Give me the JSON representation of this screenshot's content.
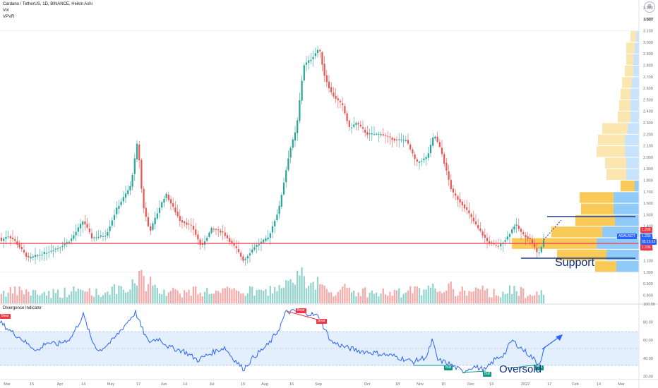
{
  "header": {
    "title": "Cardano / TetherUS, 1D, BINANCE, Heikin Ashi",
    "vol_label": "Vol",
    "vpvr_label": "VPVR",
    "currency": "USDT"
  },
  "price_axis": {
    "ticks": [
      "3.300",
      "3.200",
      "3.100",
      "3.000",
      "2.900",
      "2.800",
      "2.700",
      "2.600",
      "2.500",
      "2.400",
      "2.300",
      "2.200",
      "2.100",
      "2.000",
      "1.900",
      "1.800",
      "1.700",
      "1.600",
      "1.500",
      "1.400",
      "1.300",
      "1.200",
      "1.100",
      "1.000",
      "0.900",
      "0.800"
    ],
    "badges": [
      {
        "text": "1.298",
        "color": "#f23645"
      },
      {
        "text": "ADAUSDT",
        "color": "#2962ff"
      },
      {
        "text": "1.293",
        "color": "#2962ff"
      },
      {
        "text": "05:15:12",
        "color": "#2962ff"
      },
      {
        "text": "1.236",
        "color": "#f23645"
      }
    ]
  },
  "oscillator": {
    "title": "Divergence Indicator",
    "ticks": [
      "100.00",
      "80.00",
      "60.00",
      "40.00",
      "20.00"
    ],
    "band_upper": 70,
    "band_lower": 30,
    "signals": [
      {
        "text": "Bear",
        "color": "#f23645"
      },
      {
        "text": "Bear",
        "color": "#f23645"
      },
      {
        "text": "Bear",
        "color": "#f23645"
      },
      {
        "text": "Bull",
        "color": "#089981"
      },
      {
        "text": "Bull",
        "color": "#089981"
      },
      {
        "text": "Bull",
        "color": "#089981"
      }
    ]
  },
  "time_axis": {
    "ticks": [
      "Mar",
      "15",
      "Apr",
      "14",
      "May",
      "17",
      "Jun",
      "14",
      "Jul",
      "19",
      "Aug",
      "16",
      "Sep",
      "Oct",
      "18",
      "Nov",
      "15",
      "Dec",
      "13",
      "2022",
      "17",
      "Feb",
      "14",
      "Mar"
    ]
  },
  "annotations": {
    "support": "Support",
    "oversold": "Oversold"
  },
  "colors": {
    "up": "#26a69a",
    "down": "#ef5350",
    "support_line": "#f23645",
    "level_line": "#1e3a8a",
    "vpvr_up": "#f9c74f",
    "vpvr_down": "#90caf9",
    "rsi": "#2962ff"
  },
  "icons": [
    "settings-icon"
  ]
}
